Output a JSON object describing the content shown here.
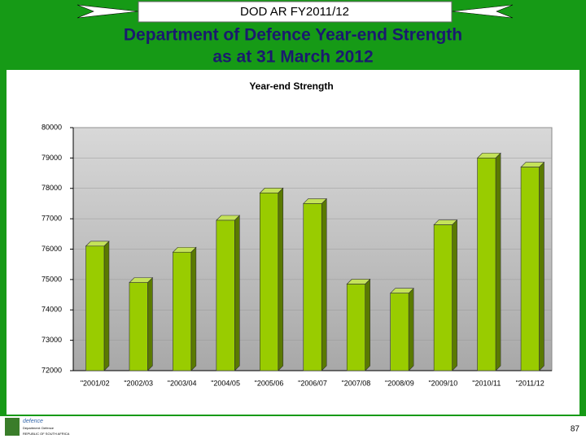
{
  "header": {
    "banner": "DOD AR FY2011/12",
    "title_line1": "Department of Defence Year-end Strength",
    "title_line2": "as at 31 March 2012"
  },
  "chart_data": {
    "type": "bar",
    "title": "Year-end Strength",
    "categories": [
      "\"2001/02",
      "\"2002/03",
      "\"2003/04",
      "\"2004/05",
      "\"2005/06",
      "\"2006/07",
      "\"2007/08",
      "\"2008/09",
      "\"2009/10",
      "\"2010/11",
      "\"2011/12"
    ],
    "values": [
      76100,
      74900,
      75900,
      76950,
      77850,
      77500,
      74850,
      74550,
      76800,
      79000,
      78700
    ],
    "color": "#99cc00",
    "ylim": [
      72000,
      80000
    ],
    "yticks": [
      72000,
      73000,
      74000,
      75000,
      76000,
      77000,
      78000,
      79000,
      80000
    ],
    "grid": true
  },
  "footer": {
    "logo_word": "defence",
    "logo_sub": "Department: Defence",
    "logo_country": "REPUBLIC OF SOUTH AFRICA",
    "page": "87"
  }
}
